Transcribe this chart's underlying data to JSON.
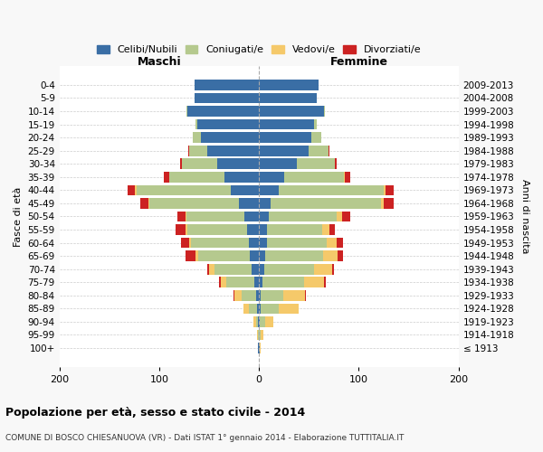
{
  "age_groups": [
    "100+",
    "95-99",
    "90-94",
    "85-89",
    "80-84",
    "75-79",
    "70-74",
    "65-69",
    "60-64",
    "55-59",
    "50-54",
    "45-49",
    "40-44",
    "35-39",
    "30-34",
    "25-29",
    "20-24",
    "15-19",
    "10-14",
    "5-9",
    "0-4"
  ],
  "birth_years": [
    "≤ 1913",
    "1914-1918",
    "1919-1923",
    "1924-1928",
    "1929-1933",
    "1934-1938",
    "1939-1943",
    "1944-1948",
    "1949-1953",
    "1954-1958",
    "1959-1963",
    "1964-1968",
    "1969-1973",
    "1974-1978",
    "1979-1983",
    "1984-1988",
    "1989-1993",
    "1994-1998",
    "1999-2003",
    "2004-2008",
    "2009-2013"
  ],
  "colors": {
    "celibi": "#3a6ea5",
    "coniugati": "#b5c98e",
    "vedovi": "#f5c96a",
    "divorziati": "#cc2222"
  },
  "males": {
    "celibi": [
      1,
      0,
      1,
      2,
      3,
      5,
      7,
      9,
      10,
      12,
      15,
      20,
      28,
      35,
      42,
      52,
      58,
      62,
      72,
      65,
      65
    ],
    "coniugati": [
      0,
      1,
      2,
      8,
      14,
      28,
      38,
      52,
      58,
      60,
      58,
      90,
      95,
      55,
      35,
      18,
      8,
      2,
      1,
      0,
      0
    ],
    "vedovi": [
      0,
      1,
      3,
      6,
      8,
      5,
      5,
      3,
      2,
      2,
      1,
      1,
      1,
      0,
      0,
      0,
      0,
      0,
      0,
      0,
      0
    ],
    "divorziati": [
      0,
      0,
      0,
      0,
      1,
      2,
      2,
      10,
      8,
      10,
      8,
      8,
      8,
      5,
      2,
      1,
      0,
      0,
      0,
      0,
      0
    ]
  },
  "females": {
    "nubili": [
      1,
      0,
      1,
      2,
      2,
      3,
      5,
      6,
      8,
      8,
      10,
      12,
      20,
      25,
      38,
      50,
      52,
      55,
      65,
      58,
      60
    ],
    "coniugate": [
      0,
      2,
      5,
      18,
      22,
      42,
      50,
      58,
      60,
      55,
      68,
      110,
      105,
      60,
      38,
      20,
      10,
      3,
      1,
      0,
      0
    ],
    "vedove": [
      1,
      2,
      8,
      20,
      22,
      20,
      18,
      15,
      10,
      8,
      5,
      3,
      2,
      1,
      0,
      0,
      0,
      0,
      0,
      0,
      0
    ],
    "divorziate": [
      0,
      0,
      0,
      0,
      1,
      2,
      2,
      5,
      6,
      5,
      8,
      10,
      8,
      5,
      2,
      1,
      0,
      0,
      0,
      0,
      0
    ]
  },
  "title": "Popolazione per età, sesso e stato civile - 2014",
  "subtitle": "COMUNE DI BOSCO CHIESANUOVA (VR) - Dati ISTAT 1° gennaio 2014 - Elaborazione TUTTITALIA.IT",
  "xlabel_left": "Maschi",
  "xlabel_right": "Femmine",
  "ylabel_left": "Fasce di età",
  "ylabel_right": "Anni di nascita",
  "xlim": 200,
  "xticks": [
    -200,
    -100,
    0,
    100,
    200
  ],
  "xtick_labels": [
    "200",
    "100",
    "0",
    "100",
    "200"
  ],
  "legend_labels": [
    "Celibi/Nubili",
    "Coniugati/e",
    "Vedovi/e",
    "Divorziati/e"
  ],
  "bg_color": "#f8f8f8",
  "plot_bg": "#ffffff"
}
